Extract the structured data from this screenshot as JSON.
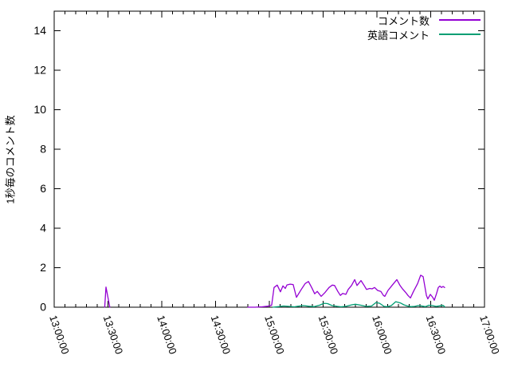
{
  "chart_data": {
    "type": "line",
    "title": "",
    "xlabel": "",
    "ylabel": "1秒毎のコメント数",
    "grid": false,
    "legend_position": "top-right-inside",
    "axis_color": "#000000",
    "background_color": "#ffffff",
    "y_axis": {
      "range": [
        0,
        15
      ],
      "tick_values": [
        0,
        2,
        4,
        6,
        8,
        10,
        12,
        14
      ],
      "tick_labels": [
        "0",
        "2",
        "4",
        "6",
        "8",
        "10",
        "12",
        "14"
      ]
    },
    "x_axis": {
      "range_minutes_after_1300": [
        0,
        240
      ],
      "tick_minutes": [
        0,
        30,
        60,
        90,
        120,
        150,
        180,
        210,
        240
      ],
      "tick_labels": [
        "13:00:00",
        "13:30:00",
        "14:00:00",
        "14:30:00",
        "15:00:00",
        "15:30:00",
        "16:00:00",
        "16:30:00",
        "17:00:00"
      ],
      "minor_tick_step_minutes": 6,
      "label_rotation_deg": 71
    },
    "legend": [
      {
        "label": "コメント数",
        "color": "#9400d3"
      },
      {
        "label": "英語コメント",
        "color": "#009e73"
      }
    ],
    "series": [
      {
        "name": "コメント数",
        "color": "#9400d3",
        "segments": [
          [
            [
              28.2,
              0
            ],
            [
              28.9,
              1.02
            ],
            [
              31.0,
              0
            ]
          ],
          [
            [
              108,
              0
            ],
            [
              112,
              0
            ],
            [
              116,
              0.02
            ],
            [
              119,
              0.05
            ],
            [
              121.3,
              0.1
            ],
            [
              122.6,
              1.0
            ],
            [
              124.4,
              1.12
            ],
            [
              126.2,
              0.78
            ],
            [
              127.6,
              1.08
            ],
            [
              128.9,
              0.95
            ],
            [
              129.8,
              1.13
            ],
            [
              131.6,
              1.17
            ],
            [
              133.3,
              1.15
            ],
            [
              135.1,
              0.5
            ],
            [
              137.8,
              0.9
            ],
            [
              140.0,
              1.2
            ],
            [
              141.8,
              1.3
            ],
            [
              143.6,
              1.0
            ],
            [
              145.3,
              0.68
            ],
            [
              146.7,
              0.8
            ],
            [
              148.9,
              0.55
            ],
            [
              151.1,
              0.75
            ],
            [
              153.3,
              1.0
            ],
            [
              155.1,
              1.12
            ],
            [
              156.4,
              1.1
            ],
            [
              158.2,
              0.8
            ],
            [
              159.6,
              0.6
            ],
            [
              160.9,
              0.7
            ],
            [
              162.7,
              0.65
            ],
            [
              164.0,
              0.9
            ],
            [
              165.8,
              1.1
            ],
            [
              167.6,
              1.4
            ],
            [
              168.9,
              1.1
            ],
            [
              171.1,
              1.35
            ],
            [
              172.9,
              1.1
            ],
            [
              174.2,
              0.9
            ],
            [
              176.0,
              0.95
            ],
            [
              177.3,
              0.93
            ],
            [
              178.7,
              1.0
            ],
            [
              180.4,
              0.85
            ],
            [
              182.2,
              0.8
            ],
            [
              183.6,
              0.6
            ],
            [
              184.4,
              0.55
            ],
            [
              186.2,
              0.85
            ],
            [
              188.4,
              1.1
            ],
            [
              191.1,
              1.4
            ],
            [
              192.9,
              1.1
            ],
            [
              194.2,
              0.94
            ],
            [
              196.0,
              0.75
            ],
            [
              197.3,
              0.6
            ],
            [
              198.7,
              0.47
            ],
            [
              200.4,
              0.8
            ],
            [
              202.7,
              1.2
            ],
            [
              204.4,
              1.62
            ],
            [
              205.8,
              1.55
            ],
            [
              207.6,
              0.6
            ],
            [
              208.4,
              0.42
            ],
            [
              209.8,
              0.65
            ],
            [
              211.1,
              0.5
            ],
            [
              212.0,
              0.35
            ],
            [
              213.3,
              0.7
            ],
            [
              214.2,
              1.0
            ],
            [
              215.1,
              1.07
            ],
            [
              216.0,
              1.0
            ],
            [
              216.9,
              1.05
            ],
            [
              217.8,
              1.0
            ]
          ]
        ]
      },
      {
        "name": "英語コメント",
        "color": "#009e73",
        "segments": [
          [
            [
              122,
              0
            ],
            [
              125,
              0.03
            ],
            [
              128,
              0.06
            ],
            [
              131,
              0.04
            ],
            [
              134,
              0.02
            ],
            [
              136,
              0.05
            ],
            [
              139,
              0.08
            ],
            [
              142,
              0.05
            ],
            [
              145,
              0.03
            ],
            [
              148,
              0.1
            ],
            [
              150.5,
              0.2
            ],
            [
              152.5,
              0.18
            ],
            [
              155,
              0.08
            ],
            [
              158,
              0.04
            ],
            [
              160,
              0.02
            ],
            [
              163,
              0.05
            ],
            [
              166,
              0.12
            ],
            [
              168,
              0.15
            ],
            [
              171,
              0.1
            ],
            [
              174,
              0.04
            ],
            [
              177,
              0.06
            ],
            [
              179.5,
              0.24
            ],
            [
              181.5,
              0.2
            ],
            [
              184,
              0.04
            ],
            [
              186,
              0.03
            ],
            [
              188,
              0.08
            ],
            [
              190.5,
              0.28
            ],
            [
              193,
              0.22
            ],
            [
              195,
              0.12
            ],
            [
              197,
              0.06
            ],
            [
              199,
              0.03
            ],
            [
              201,
              0.04
            ],
            [
              203,
              0.08
            ],
            [
              205,
              0.06
            ],
            [
              207,
              0.03
            ],
            [
              209,
              0.1
            ],
            [
              211,
              0.08
            ],
            [
              213,
              0.04
            ],
            [
              215,
              0.07
            ],
            [
              217,
              0.09
            ],
            [
              217.8,
              0.02
            ]
          ]
        ]
      }
    ]
  }
}
